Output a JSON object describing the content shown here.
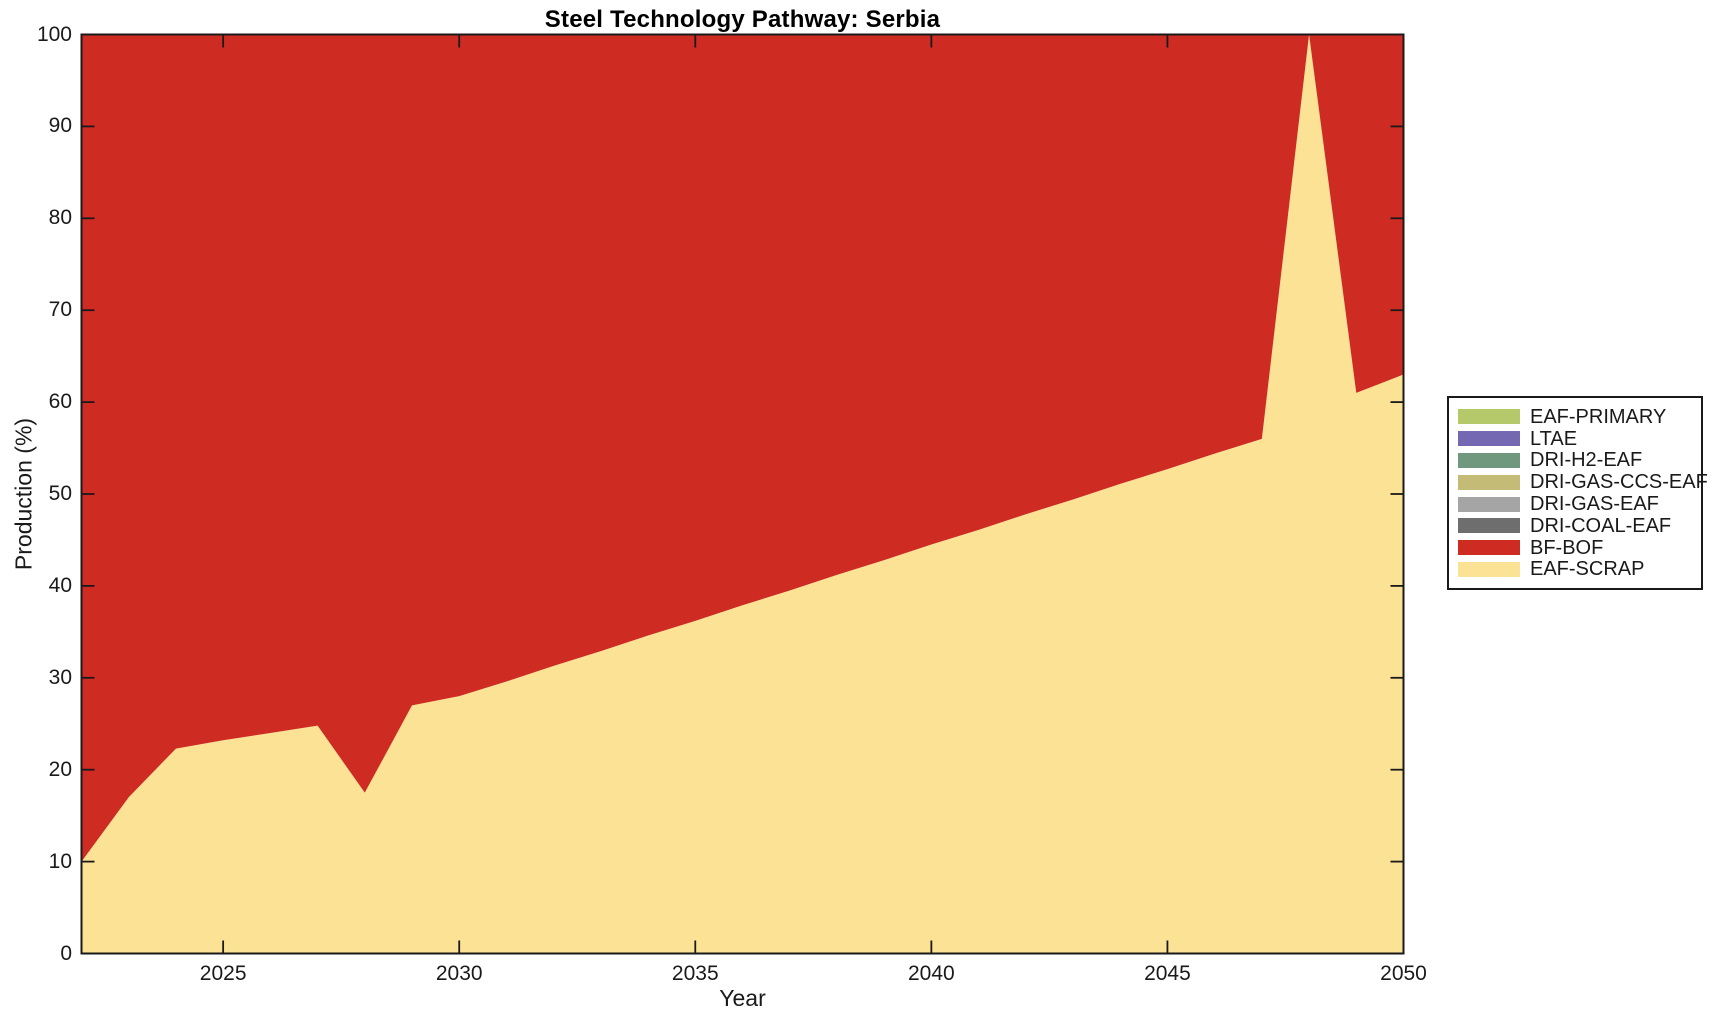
{
  "figure": {
    "background_color": "#ffffff",
    "axes_color": "#1a1a1a",
    "title_color": "#000000"
  },
  "chart_data": {
    "type": "area",
    "title": "Steel Technology Pathway: Serbia",
    "xlabel": "Year",
    "ylabel": "Production (%)",
    "xlim": [
      2022,
      2050
    ],
    "ylim": [
      0,
      100
    ],
    "grid": false,
    "legend_position": "right-outside",
    "x": [
      2022,
      2023,
      2024,
      2025,
      2026,
      2027,
      2028,
      2029,
      2030,
      2031,
      2032,
      2033,
      2034,
      2035,
      2036,
      2037,
      2038,
      2039,
      2040,
      2041,
      2042,
      2043,
      2044,
      2045,
      2046,
      2047,
      2048,
      2049,
      2050
    ],
    "x_ticks": [
      2025,
      2030,
      2035,
      2040,
      2045,
      2050
    ],
    "y_ticks": [
      0,
      10,
      20,
      30,
      40,
      50,
      60,
      70,
      80,
      90,
      100
    ],
    "stacking_note": "series listed in legend order (top stack layer first); stacked bottom-up starting from last entry",
    "series": [
      {
        "name": "EAF-PRIMARY",
        "color": "#B6C96A",
        "values": [
          0,
          0,
          0,
          0,
          0,
          0,
          0,
          0,
          0,
          0,
          0,
          0,
          0,
          0,
          0,
          0,
          0,
          0,
          0,
          0,
          0,
          0,
          0,
          0,
          0,
          0,
          0,
          0,
          0
        ]
      },
      {
        "name": "LTAE",
        "color": "#7568B2",
        "values": [
          0,
          0,
          0,
          0,
          0,
          0,
          0,
          0,
          0,
          0,
          0,
          0,
          0,
          0,
          0,
          0,
          0,
          0,
          0,
          0,
          0,
          0,
          0,
          0,
          0,
          0,
          0,
          0,
          0
        ]
      },
      {
        "name": "DRI-H2-EAF",
        "color": "#70987F",
        "values": [
          0,
          0,
          0,
          0,
          0,
          0,
          0,
          0,
          0,
          0,
          0,
          0,
          0,
          0,
          0,
          0,
          0,
          0,
          0,
          0,
          0,
          0,
          0,
          0,
          0,
          0,
          0,
          0,
          0
        ]
      },
      {
        "name": "DRI-GAS-CCS-EAF",
        "color": "#C4BC76",
        "values": [
          0,
          0,
          0,
          0,
          0,
          0,
          0,
          0,
          0,
          0,
          0,
          0,
          0,
          0,
          0,
          0,
          0,
          0,
          0,
          0,
          0,
          0,
          0,
          0,
          0,
          0,
          0,
          0,
          0
        ]
      },
      {
        "name": "DRI-GAS-EAF",
        "color": "#A5A5A5",
        "values": [
          0,
          0,
          0,
          0,
          0,
          0,
          0,
          0,
          0,
          0,
          0,
          0,
          0,
          0,
          0,
          0,
          0,
          0,
          0,
          0,
          0,
          0,
          0,
          0,
          0,
          0,
          0,
          0,
          0
        ]
      },
      {
        "name": "DRI-COAL-EAF",
        "color": "#6E6E6E",
        "values": [
          0,
          0,
          0,
          0,
          0,
          0,
          0,
          0,
          0,
          0,
          0,
          0,
          0,
          0,
          0,
          0,
          0,
          0,
          0,
          0,
          0,
          0,
          0,
          0,
          0,
          0,
          0,
          0,
          0
        ]
      },
      {
        "name": "BF-BOF",
        "color": "#CE2B23",
        "values": [
          90,
          83,
          77.7,
          76.8,
          76,
          75.2,
          82.5,
          73,
          72,
          70.4,
          68.7,
          67.1,
          65.4,
          63.8,
          62.1,
          60.5,
          58.8,
          57.2,
          55.5,
          53.9,
          52.2,
          50.6,
          48.9,
          47.3,
          45.6,
          44,
          0,
          39,
          37
        ]
      },
      {
        "name": "EAF-SCRAP",
        "color": "#FCE294",
        "values": [
          10,
          17,
          22.3,
          23.2,
          24,
          24.8,
          17.5,
          27,
          28,
          29.6,
          31.3,
          32.9,
          34.6,
          36.2,
          37.9,
          39.5,
          41.2,
          42.8,
          44.5,
          46.1,
          47.8,
          49.4,
          51.1,
          52.7,
          54.4,
          56,
          100,
          61,
          63
        ]
      }
    ]
  }
}
